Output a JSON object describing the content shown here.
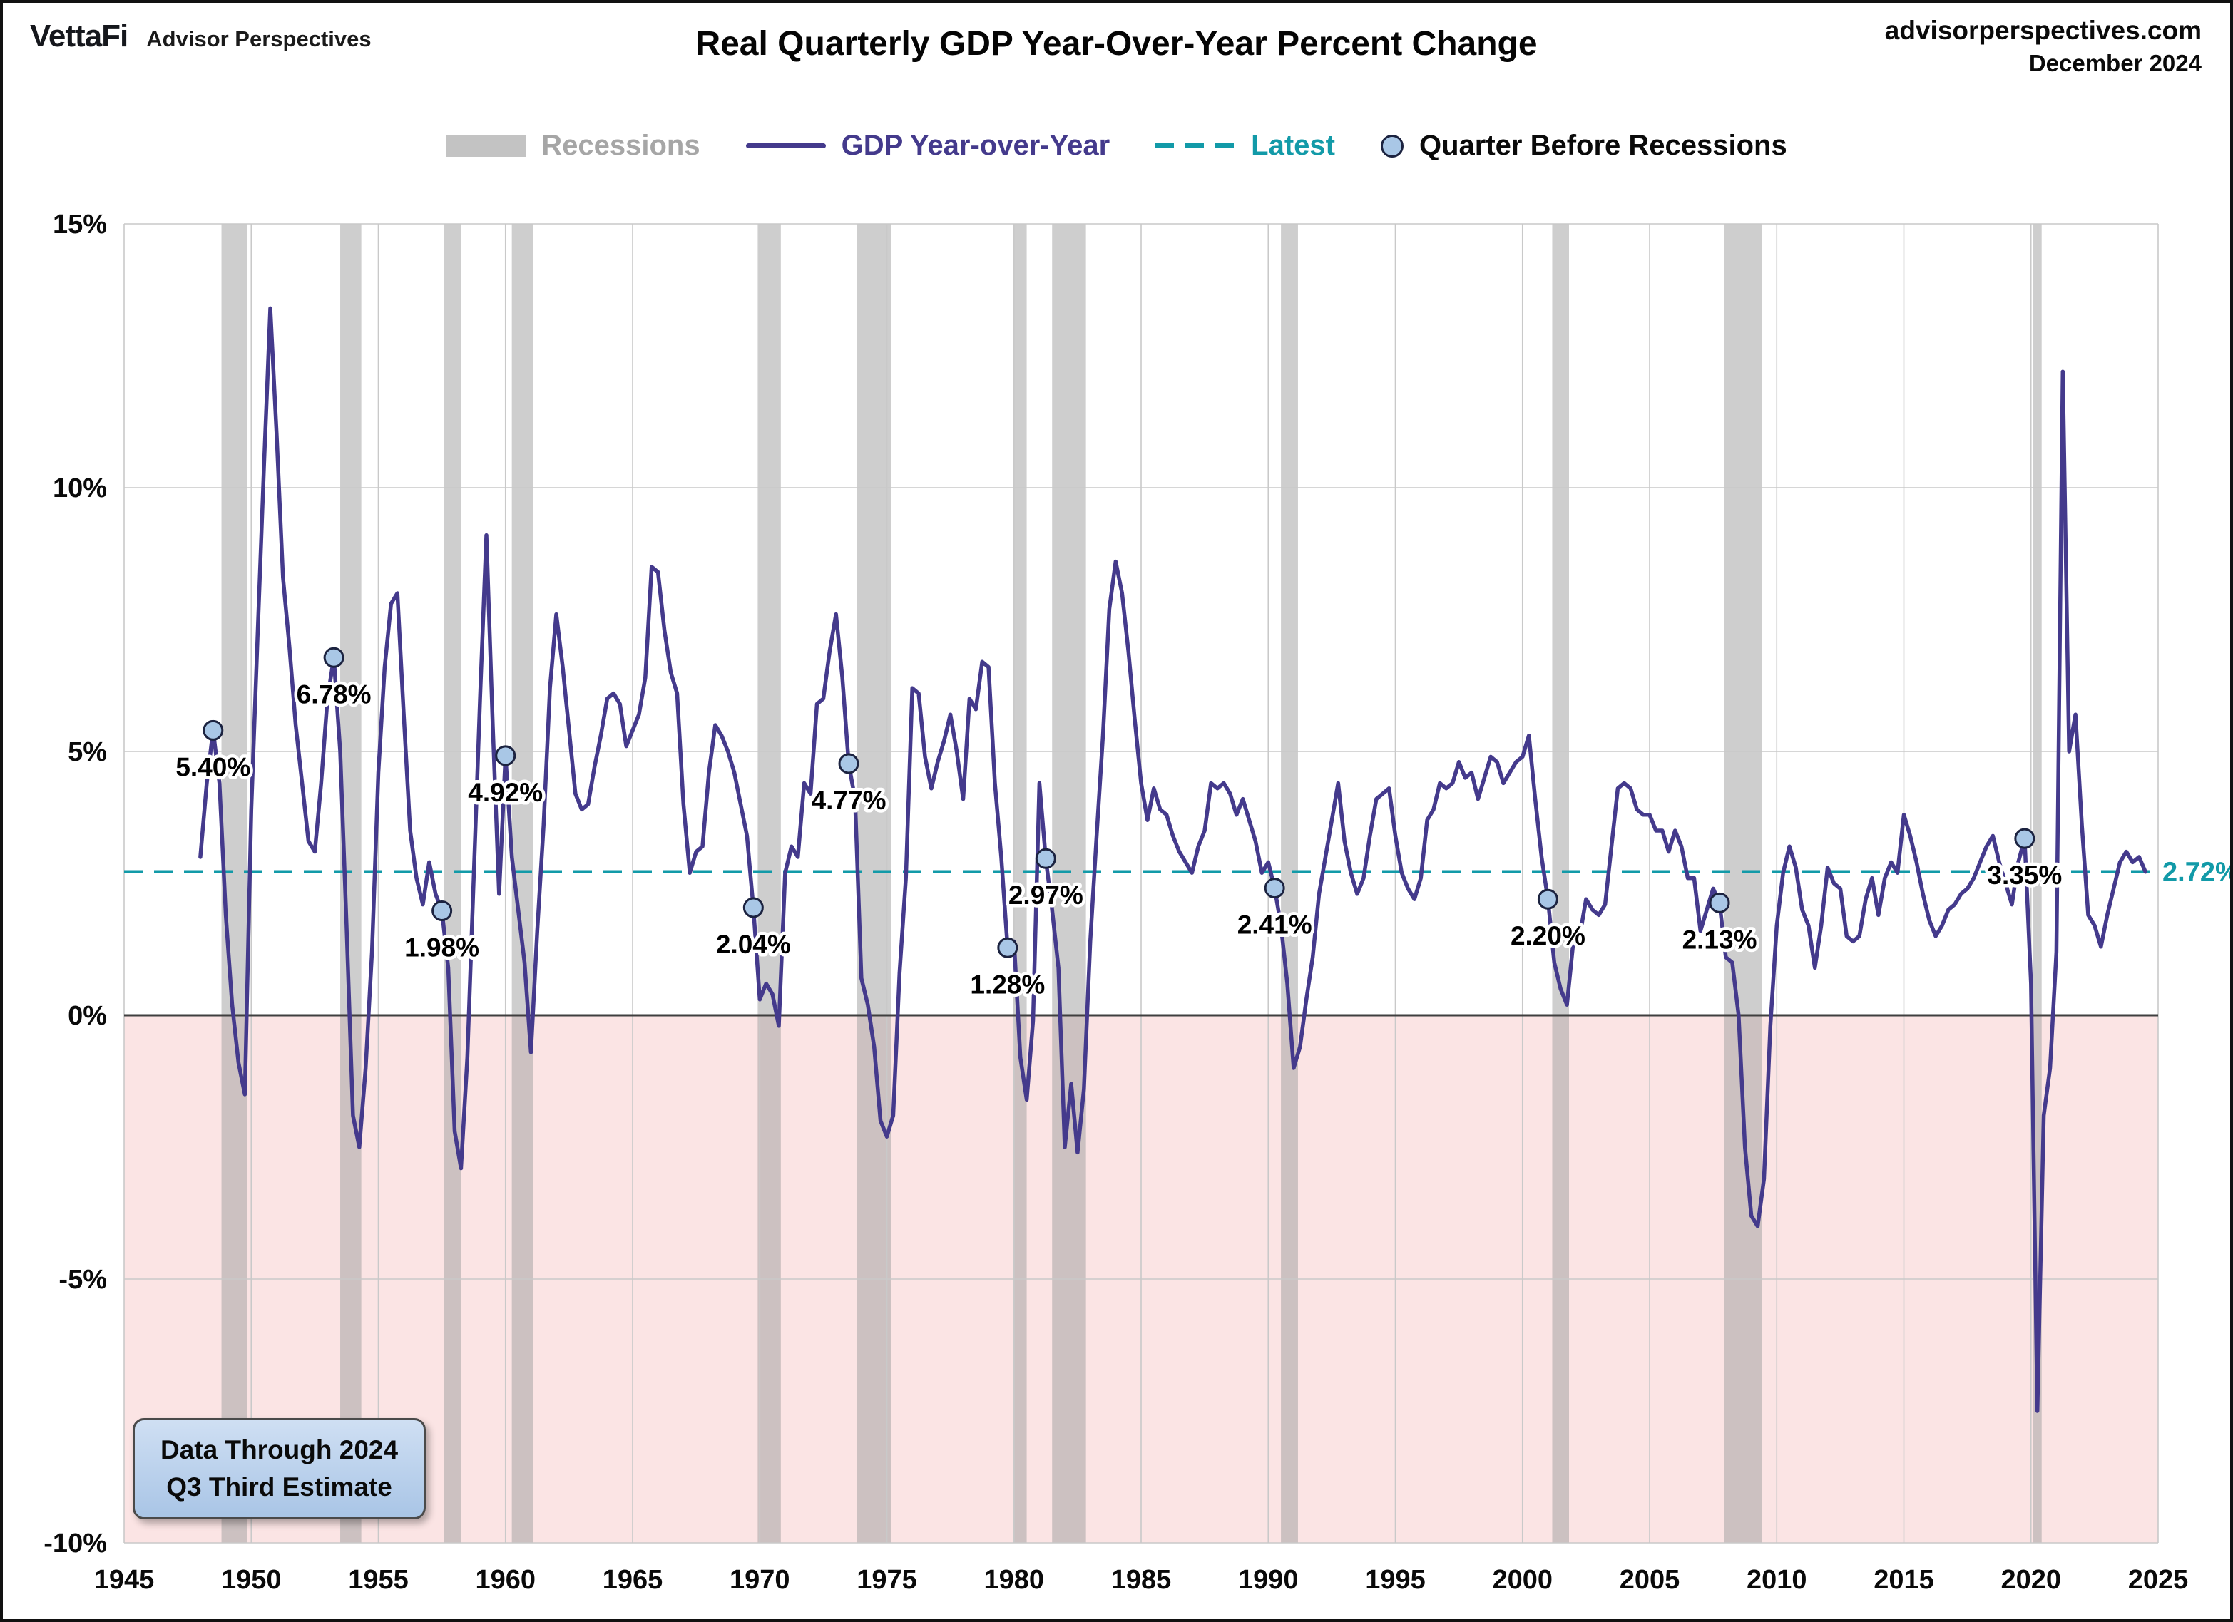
{
  "header": {
    "logo_primary": "VettaFi",
    "logo_secondary": "Advisor Perspectives",
    "title": "Real Quarterly GDP Year-Over-Year Percent Change",
    "site": "advisorperspectives.com",
    "date": "December 2024"
  },
  "legend": {
    "recessions": "Recessions",
    "gdp": "GDP Year-over-Year",
    "latest": "Latest",
    "pre_recession": "Quarter Before Recessions"
  },
  "annotation_box": {
    "line1": "Data Through 2024",
    "line2": "Q3 Third Estimate"
  },
  "colors": {
    "gdp_line": "#443a8c",
    "latest_line": "#129aa8",
    "marker_fill": "#a9c7e6",
    "marker_stroke": "#1c2340",
    "recession_band": "#9e9e9e",
    "negative_region": "#fbe4e4",
    "grid": "#c9c9c9",
    "zero_line": "#3f3f3f",
    "legend_recession_text": "#a6a6a6"
  },
  "chart_data": {
    "type": "line",
    "title": "Real Quarterly GDP Year-Over-Year Percent Change",
    "xlabel": "",
    "ylabel": "",
    "x_range": [
      1945,
      2025
    ],
    "y_range": [
      -10,
      15
    ],
    "x_ticks": [
      1945,
      1950,
      1955,
      1960,
      1965,
      1970,
      1975,
      1980,
      1985,
      1990,
      1995,
      2000,
      2005,
      2010,
      2015,
      2020,
      2025
    ],
    "y_ticks": [
      {
        "value": 15,
        "label": "15%"
      },
      {
        "value": 10,
        "label": "10%"
      },
      {
        "value": 5,
        "label": "5%"
      },
      {
        "value": 0,
        "label": "0%"
      },
      {
        "value": -5,
        "label": "-5%"
      },
      {
        "value": -10,
        "label": "-10%"
      }
    ],
    "latest": {
      "value": 2.72,
      "label": "2.72%"
    },
    "recessions": [
      [
        1948.83,
        1949.83
      ],
      [
        1953.5,
        1954.33
      ],
      [
        1957.58,
        1958.25
      ],
      [
        1960.25,
        1961.08
      ],
      [
        1969.92,
        1970.83
      ],
      [
        1973.83,
        1975.17
      ],
      [
        1980.0,
        1980.5
      ],
      [
        1981.5,
        1982.83
      ],
      [
        1990.5,
        1991.17
      ],
      [
        2001.17,
        2001.83
      ],
      [
        2007.92,
        2009.42
      ],
      [
        2020.08,
        2020.42
      ]
    ],
    "pre_recession_markers": [
      {
        "x": 1948.5,
        "value": 5.4,
        "label": "5.40%"
      },
      {
        "x": 1953.25,
        "value": 6.78,
        "label": "6.78%"
      },
      {
        "x": 1957.5,
        "value": 1.98,
        "label": "1.98%"
      },
      {
        "x": 1960.0,
        "value": 4.92,
        "label": "4.92%"
      },
      {
        "x": 1969.75,
        "value": 2.04,
        "label": "2.04%"
      },
      {
        "x": 1973.5,
        "value": 4.77,
        "label": "4.77%"
      },
      {
        "x": 1979.75,
        "value": 1.28,
        "label": "1.28%"
      },
      {
        "x": 1981.25,
        "value": 2.97,
        "label": "2.97%"
      },
      {
        "x": 1990.25,
        "value": 2.41,
        "label": "2.41%"
      },
      {
        "x": 2001.0,
        "value": 2.2,
        "label": "2.20%"
      },
      {
        "x": 2007.75,
        "value": 2.13,
        "label": "2.13%"
      },
      {
        "x": 2019.75,
        "value": 3.35,
        "label": "3.35%"
      }
    ],
    "series": [
      {
        "name": "GDP Year-over-Year",
        "frequency": "quarterly",
        "start_year": 1948,
        "start_quarter": 1,
        "values": [
          3.0,
          4.4,
          5.4,
          4.4,
          1.9,
          0.2,
          -0.9,
          -1.5,
          3.9,
          7.2,
          10.4,
          13.4,
          11.0,
          8.3,
          7.0,
          5.5,
          4.4,
          3.3,
          3.1,
          4.4,
          6.0,
          6.78,
          5.0,
          1.7,
          -1.9,
          -2.5,
          -1.0,
          1.2,
          4.6,
          6.6,
          7.8,
          8.0,
          5.7,
          3.5,
          2.6,
          2.1,
          2.9,
          2.3,
          1.98,
          0.9,
          -2.2,
          -2.9,
          -0.8,
          2.6,
          6.0,
          9.1,
          5.5,
          2.3,
          4.92,
          3.0,
          2.0,
          1.0,
          -0.7,
          1.6,
          3.6,
          6.2,
          7.6,
          6.6,
          5.4,
          4.2,
          3.9,
          4.0,
          4.7,
          5.3,
          6.0,
          6.1,
          5.9,
          5.1,
          5.4,
          5.7,
          6.4,
          8.5,
          8.4,
          7.3,
          6.5,
          6.1,
          4.0,
          2.7,
          3.1,
          3.2,
          4.6,
          5.5,
          5.3,
          5.0,
          4.6,
          4.0,
          3.4,
          2.04,
          0.3,
          0.6,
          0.4,
          -0.2,
          2.7,
          3.2,
          3.0,
          4.4,
          4.2,
          5.9,
          6.0,
          6.9,
          7.6,
          6.4,
          4.77,
          4.1,
          0.7,
          0.2,
          -0.6,
          -2.0,
          -2.3,
          -1.9,
          0.8,
          2.6,
          6.2,
          6.1,
          4.9,
          4.3,
          4.8,
          5.2,
          5.7,
          5.0,
          4.1,
          6.0,
          5.8,
          6.7,
          6.6,
          4.4,
          3.0,
          1.28,
          1.4,
          -0.8,
          -1.6,
          -0.1,
          4.4,
          2.97,
          2.0,
          0.9,
          -2.5,
          -1.3,
          -2.6,
          -1.4,
          1.4,
          3.4,
          5.3,
          7.7,
          8.6,
          8.0,
          6.9,
          5.6,
          4.4,
          3.7,
          4.3,
          3.9,
          3.8,
          3.4,
          3.1,
          2.9,
          2.7,
          3.2,
          3.5,
          4.4,
          4.3,
          4.4,
          4.2,
          3.8,
          4.1,
          3.7,
          3.3,
          2.7,
          2.9,
          2.41,
          1.7,
          0.6,
          -1.0,
          -0.6,
          0.3,
          1.1,
          2.3,
          3.0,
          3.7,
          4.4,
          3.3,
          2.7,
          2.3,
          2.6,
          3.4,
          4.1,
          4.2,
          4.3,
          3.4,
          2.7,
          2.4,
          2.2,
          2.6,
          3.7,
          3.9,
          4.4,
          4.3,
          4.4,
          4.8,
          4.5,
          4.6,
          4.1,
          4.5,
          4.9,
          4.8,
          4.4,
          4.6,
          4.8,
          4.9,
          5.3,
          4.1,
          3.0,
          2.2,
          1.0,
          0.5,
          0.2,
          1.4,
          1.5,
          2.2,
          2.0,
          1.9,
          2.1,
          3.2,
          4.3,
          4.4,
          4.3,
          3.9,
          3.8,
          3.8,
          3.5,
          3.5,
          3.1,
          3.5,
          3.2,
          2.6,
          2.6,
          1.6,
          2.0,
          2.4,
          2.13,
          1.1,
          1.0,
          0.0,
          -2.5,
          -3.8,
          -4.0,
          -3.1,
          -0.2,
          1.7,
          2.7,
          3.2,
          2.8,
          2.0,
          1.7,
          0.9,
          1.7,
          2.8,
          2.5,
          2.4,
          1.5,
          1.4,
          1.5,
          2.2,
          2.6,
          1.9,
          2.6,
          2.9,
          2.7,
          3.8,
          3.4,
          2.9,
          2.3,
          1.8,
          1.5,
          1.7,
          2.0,
          2.1,
          2.3,
          2.4,
          2.6,
          2.9,
          3.2,
          3.4,
          2.9,
          2.5,
          2.1,
          2.9,
          3.35,
          0.6,
          -7.5,
          -1.9,
          -1.0,
          1.2,
          12.2,
          5.0,
          5.7,
          3.6,
          1.9,
          1.7,
          1.3,
          1.9,
          2.4,
          2.9,
          3.1,
          2.9,
          3.0,
          2.72
        ]
      }
    ]
  }
}
